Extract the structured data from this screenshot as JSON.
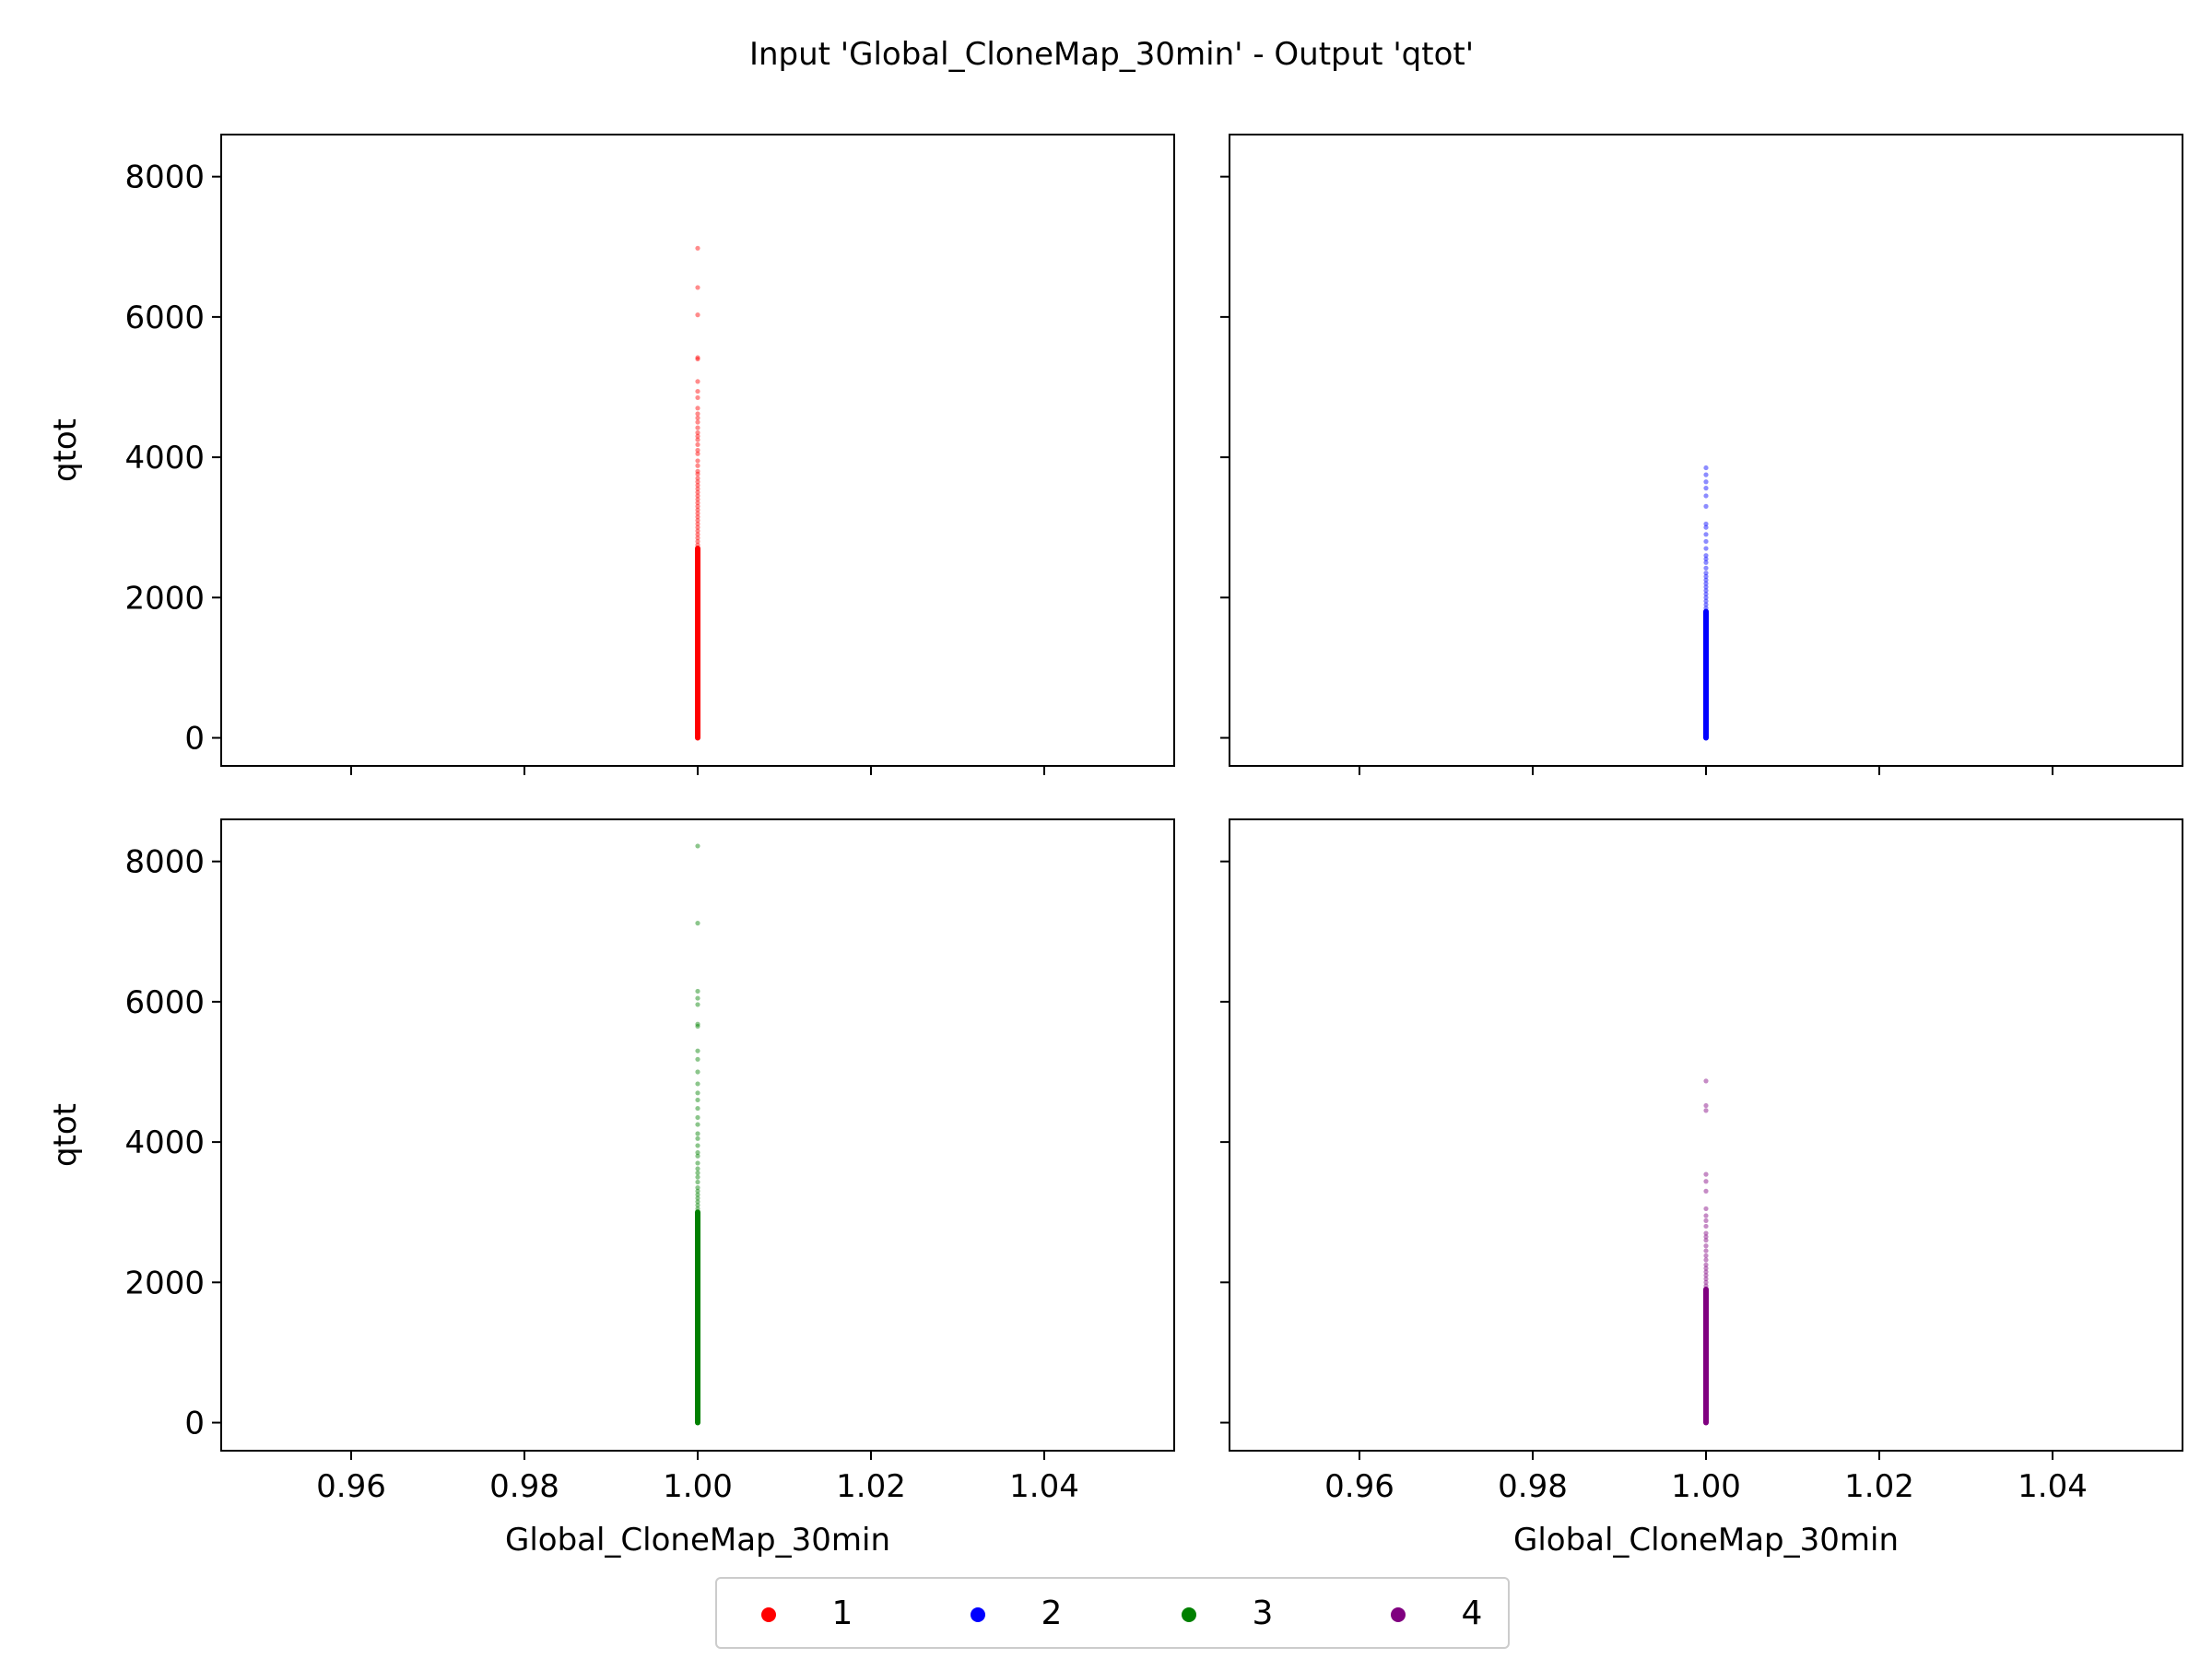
{
  "figure": {
    "title": "Input 'Global_CloneMap_30min' - Output 'qtot'"
  },
  "colors": {
    "series_1": "#ff0000",
    "series_2": "#0000ff",
    "series_3": "#008000",
    "series_4": "#800080",
    "axes": "#000000",
    "background": "#ffffff"
  },
  "chart_data": [
    {
      "type": "scatter",
      "panel": "top-left",
      "title": "",
      "xlabel": "",
      "ylabel": "qtot",
      "xlim": [
        0.945,
        1.055
      ],
      "ylim": [
        -400,
        8600
      ],
      "xticks": [
        "0.96",
        "0.98",
        "1.00",
        "1.02",
        "1.04"
      ],
      "yticks": [
        "0",
        "2000",
        "4000",
        "6000",
        "8000"
      ],
      "x_tick_labels_shown": false,
      "y_tick_labels_shown": true,
      "grid": false,
      "series": [
        {
          "name": "1",
          "color": "#ff0000",
          "x": 1.0,
          "dense_range": [
            0,
            2700
          ],
          "y": [
            6980,
            6420,
            6030,
            5420,
            5400,
            5080,
            4940,
            4850,
            4700,
            4620,
            4560,
            4500,
            4420,
            4350,
            4300,
            4250,
            4180,
            4100,
            4050,
            3950,
            3880,
            3800,
            3760,
            3700,
            3650,
            3600,
            3550,
            3500,
            3450,
            3400,
            3350,
            3300,
            3250,
            3200,
            3150,
            3100,
            3050,
            3000,
            2950,
            2900,
            2850,
            2800,
            2750
          ]
        }
      ]
    },
    {
      "type": "scatter",
      "panel": "top-right",
      "title": "",
      "xlabel": "",
      "ylabel": "",
      "xlim": [
        0.945,
        1.055
      ],
      "ylim": [
        -400,
        8600
      ],
      "xticks": [
        "0.96",
        "0.98",
        "1.00",
        "1.02",
        "1.04"
      ],
      "yticks": [
        "0",
        "2000",
        "4000",
        "6000",
        "8000"
      ],
      "x_tick_labels_shown": false,
      "y_tick_labels_shown": false,
      "grid": false,
      "series": [
        {
          "name": "2",
          "color": "#0000ff",
          "x": 1.0,
          "dense_range": [
            0,
            1800
          ],
          "y": [
            3850,
            3750,
            3650,
            3560,
            3450,
            3300,
            3050,
            3000,
            2900,
            2800,
            2700,
            2600,
            2550,
            2500,
            2420,
            2350,
            2300,
            2250,
            2200,
            2150,
            2100,
            2050,
            2000,
            1950,
            1900,
            1850
          ]
        }
      ]
    },
    {
      "type": "scatter",
      "panel": "bottom-left",
      "title": "",
      "xlabel": "Global_CloneMap_30min",
      "ylabel": "qtot",
      "xlim": [
        0.945,
        1.055
      ],
      "ylim": [
        -400,
        8600
      ],
      "xticks": [
        "0.96",
        "0.98",
        "1.00",
        "1.02",
        "1.04"
      ],
      "yticks": [
        "0",
        "2000",
        "4000",
        "6000",
        "8000"
      ],
      "x_tick_labels_shown": true,
      "y_tick_labels_shown": true,
      "grid": false,
      "series": [
        {
          "name": "3",
          "color": "#008000",
          "x": 1.0,
          "dense_range": [
            0,
            3000
          ],
          "y": [
            8220,
            7120,
            6150,
            6050,
            5960,
            5680,
            5650,
            5300,
            5180,
            5000,
            4830,
            4700,
            4600,
            4480,
            4350,
            4250,
            4120,
            4050,
            3950,
            3850,
            3800,
            3700,
            3620,
            3560,
            3500,
            3430,
            3350,
            3300,
            3250,
            3200,
            3150,
            3100,
            3050
          ]
        }
      ]
    },
    {
      "type": "scatter",
      "panel": "bottom-right",
      "title": "",
      "xlabel": "Global_CloneMap_30min",
      "ylabel": "",
      "xlim": [
        0.945,
        1.055
      ],
      "ylim": [
        -400,
        8600
      ],
      "xticks": [
        "0.96",
        "0.98",
        "1.00",
        "1.02",
        "1.04"
      ],
      "yticks": [
        "0",
        "2000",
        "4000",
        "6000",
        "8000"
      ],
      "x_tick_labels_shown": true,
      "y_tick_labels_shown": false,
      "grid": false,
      "series": [
        {
          "name": "4",
          "color": "#800080",
          "x": 1.0,
          "dense_range": [
            0,
            1900
          ],
          "y": [
            4870,
            4520,
            4450,
            3540,
            3440,
            3300,
            3050,
            2950,
            2880,
            2800,
            2700,
            2650,
            2600,
            2520,
            2450,
            2380,
            2320,
            2250,
            2200,
            2150,
            2100,
            2050,
            2000,
            1950
          ]
        }
      ]
    }
  ],
  "legend": {
    "placement": "bottom-center",
    "entries": [
      {
        "label": "1",
        "color": "#ff0000"
      },
      {
        "label": "2",
        "color": "#0000ff"
      },
      {
        "label": "3",
        "color": "#008000"
      },
      {
        "label": "4",
        "color": "#800080"
      }
    ]
  }
}
